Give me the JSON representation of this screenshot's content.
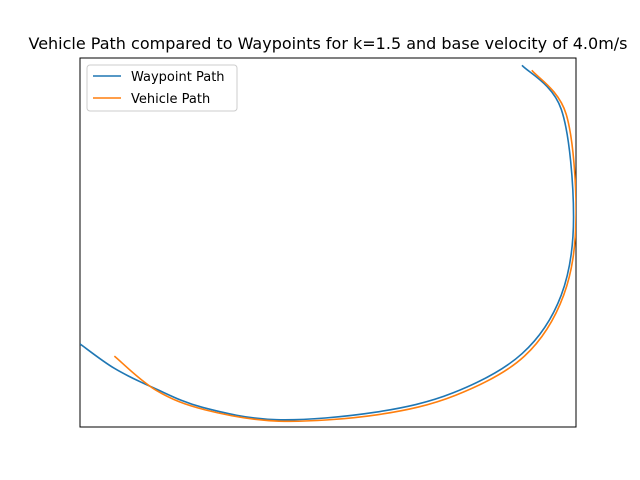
{
  "chart_data": {
    "type": "line",
    "title": "Vehicle Path compared to Waypoints for k=1.5 and base velocity of 4.0m/s",
    "xlabel": "",
    "ylabel": "",
    "axes_ticks_visible": false,
    "grid": false,
    "legend_position": "upper-left",
    "xlim": [
      -1.0,
      9.1
    ],
    "ylim": [
      -1.1,
      6.45
    ],
    "series": [
      {
        "name": "Waypoint Path",
        "color": "#1f77b4",
        "x": [
          8.0,
          8.8,
          9.05,
          8.8,
          8.0,
          6.6,
          5.0,
          3.0,
          1.5,
          0.5,
          -0.3,
          -1.0
        ],
        "y": [
          6.3,
          5.4,
          3.2,
          1.6,
          0.4,
          -0.4,
          -0.8,
          -0.95,
          -0.7,
          -0.3,
          0.1,
          0.6
        ]
      },
      {
        "name": "Vehicle Path",
        "color": "#ff7f0e",
        "x": [
          8.2,
          8.9,
          9.1,
          8.85,
          8.05,
          6.65,
          5.05,
          3.05,
          1.55,
          0.55,
          -0.3
        ],
        "y": [
          6.2,
          5.3,
          3.2,
          1.6,
          0.35,
          -0.45,
          -0.85,
          -0.98,
          -0.75,
          -0.35,
          0.35
        ]
      }
    ]
  }
}
